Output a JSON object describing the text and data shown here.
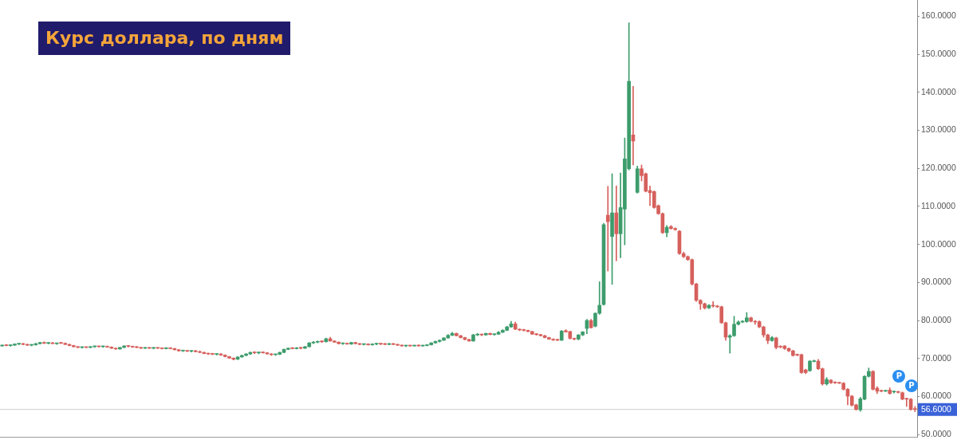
{
  "chart_data": {
    "type": "candlestick",
    "title": "Курс доллара, по дням",
    "categories": [
      null,
      null,
      null,
      null,
      null,
      null,
      null,
      null,
      null,
      null,
      null,
      null,
      null,
      null,
      null,
      null,
      null,
      null,
      null,
      null,
      null,
      null,
      null,
      null,
      null,
      null,
      null,
      null,
      null,
      null,
      null,
      null,
      null,
      null,
      null,
      null,
      null,
      null,
      null,
      null,
      null,
      null,
      null,
      null,
      null,
      null,
      null,
      null,
      null,
      null,
      null,
      null,
      null,
      null,
      null,
      null,
      null,
      null,
      null,
      null,
      null,
      null,
      null,
      null,
      null,
      null,
      null,
      null,
      null,
      null,
      null,
      null,
      null,
      null,
      null,
      null,
      null,
      null,
      null,
      null,
      null,
      null,
      null,
      null,
      null,
      null,
      null,
      null,
      null,
      null,
      null,
      null,
      null,
      null,
      null,
      null,
      null,
      null,
      null,
      null,
      null,
      null,
      null,
      null,
      null,
      null,
      null,
      null,
      null,
      null,
      null,
      null,
      null,
      null,
      null,
      null,
      null,
      null,
      null,
      null,
      null,
      null,
      null,
      null,
      null,
      null,
      null,
      null,
      null,
      null,
      null,
      null,
      null,
      null,
      null,
      null,
      null,
      null,
      null,
      null,
      null,
      null,
      null,
      null,
      null,
      null,
      null,
      null,
      null,
      null,
      null,
      null,
      null,
      null,
      null,
      null,
      null,
      null,
      null,
      null,
      null,
      null,
      null,
      null,
      null,
      null,
      null,
      null,
      null,
      null,
      null,
      null,
      null,
      null,
      null,
      null,
      null,
      null,
      null,
      null,
      null,
      null,
      null,
      null,
      null,
      null,
      null,
      null,
      null,
      null,
      null,
      null,
      null,
      null,
      null,
      null,
      null,
      null,
      null,
      null,
      null,
      null,
      null,
      null,
      null,
      null,
      null,
      null,
      null,
      null,
      null,
      null,
      null,
      null,
      null,
      null,
      null,
      null
    ],
    "ohlc": [
      [
        73.3,
        73.6,
        73.2,
        73.5
      ],
      [
        73.5,
        73.7,
        73.3,
        73.4
      ],
      [
        73.4,
        73.6,
        73.2,
        73.5
      ],
      [
        73.5,
        73.9,
        73.4,
        73.8
      ],
      [
        73.8,
        74.0,
        73.6,
        73.9
      ],
      [
        73.9,
        74.0,
        73.6,
        73.7
      ],
      [
        73.7,
        73.8,
        73.4,
        73.5
      ],
      [
        73.5,
        73.7,
        73.3,
        73.6
      ],
      [
        73.6,
        74.0,
        73.5,
        73.9
      ],
      [
        73.9,
        74.3,
        73.8,
        74.2
      ],
      [
        74.2,
        74.4,
        73.9,
        74.0
      ],
      [
        74.0,
        74.2,
        73.8,
        74.1
      ],
      [
        74.1,
        74.3,
        73.9,
        73.9
      ],
      [
        73.9,
        74.1,
        73.7,
        74.1
      ],
      [
        74.1,
        74.3,
        73.9,
        74.0
      ],
      [
        74.0,
        74.1,
        73.6,
        73.7
      ],
      [
        73.7,
        73.8,
        73.3,
        73.4
      ],
      [
        73.4,
        73.5,
        73.0,
        73.1
      ],
      [
        73.1,
        73.2,
        72.8,
        72.9
      ],
      [
        72.9,
        73.1,
        72.7,
        73.0
      ],
      [
        73.0,
        73.1,
        72.8,
        72.9
      ],
      [
        72.9,
        73.2,
        72.8,
        73.1
      ],
      [
        73.1,
        73.3,
        72.9,
        73.2
      ],
      [
        73.2,
        73.3,
        73.0,
        73.1
      ],
      [
        73.1,
        73.3,
        72.9,
        73.2
      ],
      [
        73.2,
        73.3,
        72.9,
        73.0
      ],
      [
        73.0,
        73.1,
        72.6,
        72.7
      ],
      [
        72.7,
        72.8,
        72.4,
        72.5
      ],
      [
        72.5,
        73.0,
        72.4,
        72.9
      ],
      [
        72.9,
        73.4,
        72.8,
        73.3
      ],
      [
        73.3,
        73.4,
        73.0,
        73.2
      ],
      [
        73.2,
        73.3,
        72.9,
        73.0
      ],
      [
        73.0,
        73.2,
        72.8,
        72.9
      ],
      [
        72.9,
        73.0,
        72.6,
        72.7
      ],
      [
        72.7,
        72.9,
        72.6,
        72.8
      ],
      [
        72.8,
        72.9,
        72.6,
        72.7
      ],
      [
        72.7,
        72.9,
        72.5,
        72.8
      ],
      [
        72.8,
        72.9,
        72.6,
        72.7
      ],
      [
        72.7,
        72.8,
        72.5,
        72.6
      ],
      [
        72.6,
        72.9,
        72.5,
        72.8
      ],
      [
        72.8,
        72.9,
        72.5,
        72.6
      ],
      [
        72.6,
        72.7,
        72.2,
        72.3
      ],
      [
        72.3,
        72.4,
        71.9,
        72.0
      ],
      [
        72.0,
        72.2,
        71.8,
        72.1
      ],
      [
        72.1,
        72.2,
        71.8,
        71.9
      ],
      [
        71.9,
        72.1,
        71.7,
        72.0
      ],
      [
        72.0,
        72.2,
        71.7,
        71.8
      ],
      [
        71.8,
        72.0,
        71.5,
        71.6
      ],
      [
        71.6,
        71.7,
        71.2,
        71.3
      ],
      [
        71.3,
        71.4,
        71.0,
        71.2
      ],
      [
        71.2,
        71.4,
        71.0,
        71.1
      ],
      [
        71.1,
        71.3,
        70.9,
        71.2
      ],
      [
        71.2,
        71.3,
        70.8,
        70.9
      ],
      [
        70.9,
        71.0,
        70.4,
        70.5
      ],
      [
        70.5,
        70.6,
        70.0,
        70.1
      ],
      [
        70.1,
        70.2,
        69.6,
        69.8
      ],
      [
        69.8,
        70.5,
        69.7,
        70.4
      ],
      [
        70.4,
        70.9,
        70.3,
        70.8
      ],
      [
        70.8,
        71.3,
        70.7,
        71.2
      ],
      [
        71.2,
        71.7,
        71.0,
        71.6
      ],
      [
        71.6,
        71.8,
        71.3,
        71.5
      ],
      [
        71.5,
        71.7,
        71.2,
        71.6
      ],
      [
        71.6,
        71.8,
        71.4,
        71.5
      ],
      [
        71.5,
        71.6,
        71.1,
        71.2
      ],
      [
        71.2,
        71.3,
        70.8,
        71.0
      ],
      [
        71.0,
        71.2,
        70.8,
        71.1
      ],
      [
        71.1,
        71.7,
        71.0,
        71.6
      ],
      [
        71.6,
        72.5,
        71.5,
        72.4
      ],
      [
        72.4,
        72.8,
        72.3,
        72.7
      ],
      [
        72.7,
        72.9,
        72.5,
        72.6
      ],
      [
        72.6,
        72.9,
        72.5,
        72.8
      ],
      [
        72.8,
        73.0,
        72.5,
        72.7
      ],
      [
        72.7,
        73.2,
        72.6,
        73.1
      ],
      [
        73.1,
        74.2,
        73.0,
        74.1
      ],
      [
        74.1,
        74.5,
        73.9,
        74.3
      ],
      [
        74.3,
        74.6,
        74.1,
        74.5
      ],
      [
        74.5,
        74.7,
        74.2,
        74.4
      ],
      [
        74.4,
        75.4,
        74.3,
        75.2
      ],
      [
        75.2,
        75.6,
        74.5,
        74.6
      ],
      [
        74.6,
        74.7,
        74.2,
        74.3
      ],
      [
        74.3,
        74.4,
        73.8,
        73.9
      ],
      [
        73.9,
        74.1,
        73.7,
        74.0
      ],
      [
        74.0,
        74.1,
        73.7,
        73.8
      ],
      [
        73.8,
        74.3,
        73.7,
        74.2
      ],
      [
        74.2,
        74.3,
        73.8,
        73.9
      ],
      [
        73.9,
        74.0,
        73.6,
        73.7
      ],
      [
        73.7,
        73.9,
        73.5,
        73.8
      ],
      [
        73.8,
        73.9,
        73.5,
        73.6
      ],
      [
        73.6,
        73.9,
        73.5,
        73.8
      ],
      [
        73.8,
        74.0,
        73.6,
        73.9
      ],
      [
        73.9,
        74.0,
        73.6,
        73.8
      ],
      [
        73.8,
        74.0,
        73.6,
        73.7
      ],
      [
        73.7,
        74.0,
        73.6,
        73.9
      ],
      [
        73.9,
        74.0,
        73.6,
        73.7
      ],
      [
        73.7,
        73.8,
        73.4,
        73.5
      ],
      [
        73.5,
        73.6,
        73.2,
        73.3
      ],
      [
        73.3,
        73.5,
        73.1,
        73.4
      ],
      [
        73.4,
        73.5,
        73.2,
        73.3
      ],
      [
        73.3,
        73.5,
        73.2,
        73.4
      ],
      [
        73.4,
        73.6,
        73.2,
        73.3
      ],
      [
        73.3,
        73.5,
        73.2,
        73.4
      ],
      [
        73.4,
        73.7,
        73.3,
        73.6
      ],
      [
        73.6,
        74.2,
        73.5,
        74.1
      ],
      [
        74.1,
        74.6,
        74.0,
        74.5
      ],
      [
        74.5,
        74.9,
        74.3,
        74.8
      ],
      [
        74.8,
        75.5,
        74.7,
        75.4
      ],
      [
        75.4,
        76.3,
        75.3,
        76.1
      ],
      [
        76.1,
        76.9,
        76.0,
        76.6
      ],
      [
        76.6,
        76.7,
        75.9,
        76.0
      ],
      [
        76.0,
        76.1,
        75.4,
        75.5
      ],
      [
        75.5,
        75.6,
        74.9,
        75.0
      ],
      [
        75.0,
        75.1,
        74.5,
        74.6
      ],
      [
        74.6,
        76.4,
        74.5,
        76.2
      ],
      [
        76.2,
        76.6,
        76.0,
        76.3
      ],
      [
        76.3,
        76.5,
        76.0,
        76.2
      ],
      [
        76.2,
        76.7,
        76.1,
        76.6
      ],
      [
        76.6,
        76.7,
        76.2,
        76.3
      ],
      [
        76.3,
        76.5,
        76.1,
        76.4
      ],
      [
        76.4,
        77.1,
        76.3,
        76.9
      ],
      [
        76.9,
        77.6,
        76.8,
        77.4
      ],
      [
        77.4,
        78.5,
        77.3,
        78.3
      ],
      [
        78.3,
        79.8,
        78.2,
        79.1
      ],
      [
        79.1,
        79.6,
        77.6,
        77.7
      ],
      [
        77.7,
        77.8,
        77.3,
        77.5
      ],
      [
        77.5,
        77.7,
        77.2,
        77.4
      ],
      [
        77.4,
        77.5,
        77.0,
        77.1
      ],
      [
        77.1,
        77.2,
        76.3,
        76.4
      ],
      [
        76.4,
        76.6,
        76.1,
        76.3
      ],
      [
        76.3,
        76.4,
        75.9,
        76.0
      ],
      [
        76.0,
        76.1,
        75.4,
        75.5
      ],
      [
        75.5,
        75.6,
        75.0,
        75.1
      ],
      [
        75.1,
        75.2,
        74.7,
        74.9
      ],
      [
        74.9,
        75.1,
        74.7,
        74.8
      ],
      [
        74.8,
        77.4,
        74.7,
        77.2
      ],
      [
        77.3,
        77.6,
        76.9,
        77.0
      ],
      [
        77.1,
        77.2,
        75.1,
        75.3
      ],
      [
        75.3,
        75.4,
        74.9,
        75.1
      ],
      [
        75.1,
        76.3,
        74.9,
        76.2
      ],
      [
        76.2,
        77.1,
        76.0,
        77.0
      ],
      [
        77.9,
        80.3,
        76.5,
        80.0
      ],
      [
        80.0,
        80.3,
        78.0,
        78.1
      ],
      [
        78.5,
        82.0,
        78.3,
        81.9
      ],
      [
        81.9,
        90.2,
        81.6,
        84.0
      ],
      [
        84.2,
        105.5,
        84.0,
        105.2
      ],
      [
        107.7,
        115.3,
        93.0,
        106.0
      ],
      [
        102.1,
        118.6,
        89.5,
        108.3
      ],
      [
        108.3,
        115.4,
        95.7,
        102.8
      ],
      [
        102.8,
        118.8,
        96.5,
        109.7
      ],
      [
        109.3,
        128.0,
        99.9,
        122.5
      ],
      [
        119.9,
        158.3,
        119.6,
        142.9
      ],
      [
        128.8,
        141.6,
        120.9,
        127.2
      ],
      [
        113.7,
        120.6,
        113.5,
        119.9
      ],
      [
        119.9,
        120.9,
        116.7,
        118.1
      ],
      [
        118.6,
        118.8,
        113.8,
        114.0
      ],
      [
        114.2,
        115.4,
        110.2,
        113.6
      ],
      [
        113.9,
        114.1,
        109.5,
        109.7
      ],
      [
        110.2,
        110.4,
        107.9,
        108.1
      ],
      [
        108.1,
        108.3,
        102.9,
        103.1
      ],
      [
        103.1,
        105.0,
        102.0,
        104.5
      ],
      [
        104.7,
        105.0,
        104.0,
        104.2
      ],
      [
        104.2,
        104.4,
        103.7,
        103.9
      ],
      [
        103.5,
        103.7,
        97.4,
        97.6
      ],
      [
        97.6,
        98.0,
        96.5,
        96.8
      ],
      [
        96.8,
        97.0,
        95.8,
        96.0
      ],
      [
        96.0,
        96.2,
        89.3,
        89.6
      ],
      [
        89.6,
        89.8,
        85.0,
        85.3
      ],
      [
        85.3,
        85.5,
        82.9,
        84.4
      ],
      [
        84.4,
        84.6,
        83.0,
        83.3
      ],
      [
        83.3,
        84.2,
        83.1,
        84.0
      ],
      [
        84.0,
        85.0,
        83.5,
        83.8
      ],
      [
        83.8,
        84.0,
        83.4,
        83.6
      ],
      [
        83.6,
        83.8,
        79.2,
        79.4
      ],
      [
        79.4,
        79.6,
        74.8,
        75.6
      ],
      [
        75.6,
        76.3,
        71.4,
        76.0
      ],
      [
        76.0,
        81.1,
        75.8,
        79.0
      ],
      [
        79.0,
        79.9,
        78.8,
        79.6
      ],
      [
        79.6,
        80.0,
        79.4,
        79.7
      ],
      [
        79.7,
        82.1,
        79.5,
        80.7
      ],
      [
        80.7,
        80.9,
        79.6,
        79.8
      ],
      [
        79.8,
        80.0,
        79.0,
        79.6
      ],
      [
        79.7,
        79.9,
        78.1,
        78.3
      ],
      [
        78.3,
        78.5,
        75.6,
        76.2
      ],
      [
        76.2,
        76.4,
        73.9,
        74.7
      ],
      [
        74.7,
        75.8,
        74.5,
        75.5
      ],
      [
        75.4,
        75.6,
        72.5,
        72.9
      ],
      [
        73.2,
        73.4,
        72.8,
        73.0
      ],
      [
        73.3,
        73.4,
        72.4,
        72.6
      ],
      [
        72.6,
        72.8,
        71.8,
        72.0
      ],
      [
        72.0,
        72.2,
        70.6,
        70.8
      ],
      [
        71.0,
        71.2,
        70.7,
        70.9
      ],
      [
        71.0,
        71.2,
        66.1,
        66.3
      ],
      [
        67.0,
        67.2,
        66.0,
        66.3
      ],
      [
        66.8,
        69.5,
        66.6,
        69.3
      ],
      [
        69.2,
        69.6,
        69.1,
        69.3
      ],
      [
        69.3,
        69.8,
        67.1,
        67.3
      ],
      [
        67.3,
        67.5,
        63.0,
        63.3
      ],
      [
        63.3,
        65.0,
        63.0,
        64.5
      ],
      [
        64.3,
        64.5,
        63.4,
        63.6
      ],
      [
        63.7,
        63.9,
        63.4,
        63.6
      ],
      [
        63.6,
        63.8,
        63.4,
        63.5
      ],
      [
        63.5,
        63.7,
        61.7,
        61.9
      ],
      [
        61.9,
        62.1,
        57.8,
        60.1
      ],
      [
        60.1,
        60.3,
        57.5,
        57.7
      ],
      [
        57.8,
        58.0,
        56.4,
        56.6
      ],
      [
        56.5,
        59.8,
        56.1,
        59.4
      ],
      [
        59.3,
        65.5,
        59.1,
        65.3
      ],
      [
        65.3,
        67.5,
        65.1,
        66.6
      ],
      [
        66.6,
        66.8,
        61.7,
        61.9
      ],
      [
        62.2,
        62.6,
        60.8,
        61.4
      ],
      [
        61.5,
        61.7,
        61.2,
        61.4
      ],
      [
        61.4,
        61.7,
        61.3,
        61.5
      ],
      [
        61.7,
        62.3,
        60.6,
        60.8
      ],
      [
        61.2,
        61.5,
        60.9,
        61.3
      ],
      [
        61.2,
        61.4,
        60.9,
        61.1
      ],
      [
        61.0,
        61.2,
        59.1,
        59.3
      ],
      [
        59.4,
        59.6,
        57.4,
        59.3
      ],
      [
        59.3,
        59.5,
        56.4,
        56.6
      ],
      [
        56.7,
        57.4,
        56.0,
        56.6
      ]
    ],
    "colors": [
      "#3d9c6c",
      "#d6605c",
      "#3d9c6c",
      "#3d9c6c",
      "#3d9c6c",
      "#d6605c",
      "#d6605c",
      "#3d9c6c",
      "#3d9c6c",
      "#3d9c6c",
      "#d6605c",
      "#3d9c6c",
      "#d6605c",
      "#3d9c6c",
      "#d6605c",
      "#d6605c",
      "#d6605c",
      "#d6605c",
      "#d6605c",
      "#3d9c6c",
      "#d6605c",
      "#3d9c6c",
      "#3d9c6c",
      "#d6605c",
      "#3d9c6c",
      "#d6605c",
      "#d6605c",
      "#d6605c",
      "#3d9c6c",
      "#3d9c6c",
      "#d6605c",
      "#d6605c",
      "#d6605c",
      "#d6605c",
      "#3d9c6c",
      "#d6605c",
      "#3d9c6c",
      "#d6605c",
      "#d6605c",
      "#3d9c6c",
      "#d6605c",
      "#d6605c",
      "#d6605c",
      "#3d9c6c",
      "#d6605c",
      "#3d9c6c",
      "#d6605c",
      "#d6605c",
      "#d6605c",
      "#d6605c",
      "#d6605c",
      "#3d9c6c",
      "#d6605c",
      "#d6605c",
      "#d6605c",
      "#d6605c",
      "#3d9c6c",
      "#3d9c6c",
      "#3d9c6c",
      "#3d9c6c",
      "#d6605c",
      "#3d9c6c",
      "#d6605c",
      "#d6605c",
      "#d6605c",
      "#3d9c6c",
      "#3d9c6c",
      "#3d9c6c",
      "#3d9c6c",
      "#d6605c",
      "#3d9c6c",
      "#d6605c",
      "#3d9c6c",
      "#3d9c6c",
      "#3d9c6c",
      "#3d9c6c",
      "#d6605c",
      "#3d9c6c",
      "#d6605c",
      "#d6605c",
      "#d6605c",
      "#3d9c6c",
      "#d6605c",
      "#3d9c6c",
      "#d6605c",
      "#d6605c",
      "#3d9c6c",
      "#d6605c",
      "#3d9c6c",
      "#3d9c6c",
      "#d6605c",
      "#d6605c",
      "#3d9c6c",
      "#d6605c",
      "#d6605c",
      "#d6605c",
      "#3d9c6c",
      "#d6605c",
      "#3d9c6c",
      "#d6605c",
      "#3d9c6c",
      "#3d9c6c",
      "#3d9c6c",
      "#3d9c6c",
      "#3d9c6c",
      "#3d9c6c",
      "#3d9c6c",
      "#3d9c6c",
      "#d6605c",
      "#d6605c",
      "#d6605c",
      "#d6605c",
      "#3d9c6c",
      "#3d9c6c",
      "#d6605c",
      "#3d9c6c",
      "#d6605c",
      "#3d9c6c",
      "#3d9c6c",
      "#3d9c6c",
      "#3d9c6c",
      "#3d9c6c",
      "#d6605c",
      "#d6605c",
      "#d6605c",
      "#d6605c",
      "#d6605c",
      "#d6605c",
      "#d6605c",
      "#d6605c",
      "#d6605c",
      "#d6605c",
      "#d6605c",
      "#3d9c6c",
      "#d6605c",
      "#d6605c",
      "#d6605c",
      "#3d9c6c",
      "#3d9c6c",
      "#3d9c6c",
      "#d6605c",
      "#3d9c6c",
      "#3d9c6c",
      "#3d9c6c",
      "#d6605c",
      "#3d9c6c",
      "#d6605c",
      "#3d9c6c",
      "#3d9c6c",
      "#3d9c6c",
      "#d6605c",
      "#3d9c6c",
      "#d6605c",
      "#d6605c",
      "#d6605c",
      "#d6605c",
      "#d6605c",
      "#d6605c",
      "#3d9c6c",
      "#d6605c",
      "#d6605c",
      "#d6605c",
      "#d6605c",
      "#d6605c",
      "#d6605c",
      "#d6605c",
      "#d6605c",
      "#d6605c",
      "#3d9c6c",
      "#d6605c",
      "#d6605c",
      "#d6605c",
      "#d6605c",
      "#3d9c6c",
      "#3d9c6c",
      "#3d9c6c",
      "#3d9c6c",
      "#3d9c6c",
      "#d6605c",
      "#d6605c",
      "#d6605c",
      "#d6605c",
      "#d6605c",
      "#3d9c6c",
      "#d6605c",
      "#d6605c",
      "#d6605c",
      "#d6605c",
      "#d6605c",
      "#d6605c",
      "#d6605c",
      "#d6605c",
      "#3d9c6c",
      "#3d9c6c",
      "#d6605c",
      "#d6605c",
      "#3d9c6c",
      "#d6605c",
      "#d6605c",
      "#d6605c",
      "#d6605c",
      "#d6605c",
      "#d6605c",
      "#d6605c",
      "#3d9c6c",
      "#3d9c6c",
      "#3d9c6c",
      "#d6605c",
      "#d6605c",
      "#d6605c",
      "#3d9c6c",
      "#d6605c",
      "#3d9c6c",
      "#d6605c",
      "#d6605c",
      "#d6605c",
      "#d6605c",
      "#d6605c"
    ],
    "ylim": [
      49.4,
      164.3
    ],
    "yticks": [
      {
        "value": 50,
        "label": "50.0000"
      },
      {
        "value": 60,
        "label": "60.0000"
      },
      {
        "value": 70,
        "label": "70.0000"
      },
      {
        "value": 80,
        "label": "80.0000"
      },
      {
        "value": 90,
        "label": "90.0000"
      },
      {
        "value": 100,
        "label": "100.0000"
      },
      {
        "value": 110,
        "label": "110.0000"
      },
      {
        "value": 120,
        "label": "120.0000"
      },
      {
        "value": 130,
        "label": "130.0000"
      },
      {
        "value": 140,
        "label": "140.0000"
      },
      {
        "value": 150,
        "label": "150.0000"
      },
      {
        "value": 160,
        "label": "160.0000"
      }
    ],
    "ref_lines": [
      {
        "axis": "y",
        "value": 56.6,
        "label": "56.6000",
        "color": "#cfcfcf"
      }
    ],
    "annotations": [
      {
        "text": "P",
        "y": 65.3
      },
      {
        "text": "P",
        "y": 62.8
      }
    ]
  }
}
